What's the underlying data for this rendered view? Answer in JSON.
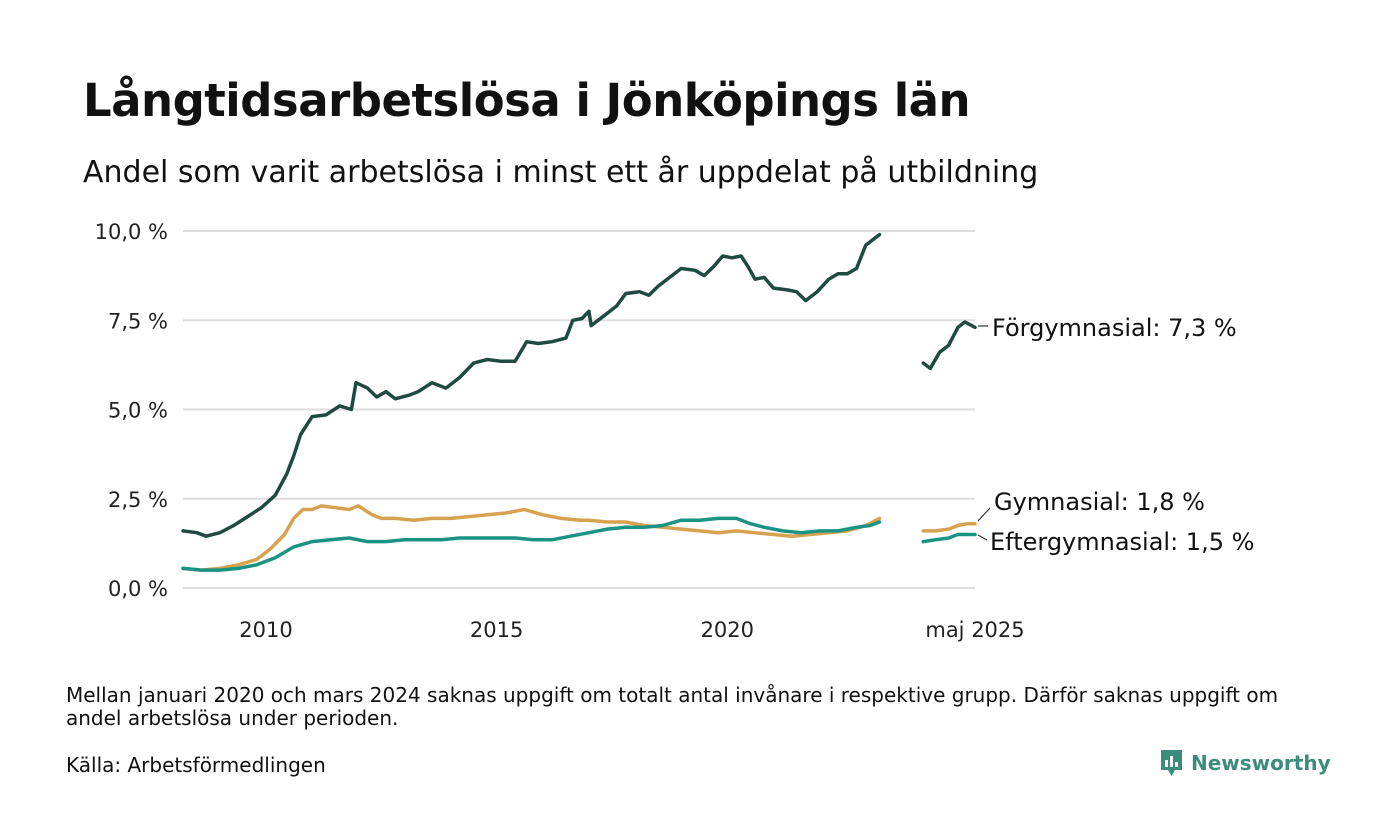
{
  "title": "Långtidsarbetslösa i Jönköpings län",
  "subtitle": "Andel som varit arbetslösa i minst ett år uppdelat på utbildning",
  "note": "Mellan januari 2020 och mars 2024 saknas uppgift om totalt antal invånare i respektive grupp. Därför saknas uppgift om andel arbetslösa under perioden.",
  "source": "Källa: Arbetsförmedlingen",
  "brand": "Newsworthy",
  "colors": {
    "forgymnasial": "#1f4a42",
    "gymnasial": "#d6a24f",
    "eftergymnasial": "#1a9383",
    "grid": "#dddddd"
  },
  "chart_data": {
    "type": "line",
    "y_tick_labels": [
      "0,0 %",
      "2,5 %",
      "5,0 %",
      "7,5 %",
      "10,0 %"
    ],
    "y_ticks": [
      0,
      2.5,
      5,
      7.5,
      10
    ],
    "x_tick_labels": [
      "2010",
      "2015",
      "2020",
      "maj 2025"
    ],
    "x_ticks": [
      2010,
      2015,
      2020,
      2025.37
    ],
    "xlim": [
      2008.2,
      2025.37
    ],
    "ylim": [
      0,
      10
    ],
    "grid": true,
    "series": [
      {
        "name": "Förgymnasial",
        "end_label": "Förgymnasial: 7,3 %",
        "color_key": "forgymnasial",
        "segments": [
          [
            [
              2008.2,
              1.6
            ],
            [
              2008.5,
              1.55
            ],
            [
              2008.7,
              1.45
            ],
            [
              2009.0,
              1.55
            ],
            [
              2009.3,
              1.75
            ],
            [
              2009.6,
              2.0
            ],
            [
              2009.9,
              2.25
            ],
            [
              2010.2,
              2.6
            ],
            [
              2010.45,
              3.2
            ],
            [
              2010.6,
              3.7
            ],
            [
              2010.75,
              4.3
            ],
            [
              2011.0,
              4.8
            ],
            [
              2011.3,
              4.85
            ],
            [
              2011.6,
              5.1
            ],
            [
              2011.85,
              5.0
            ],
            [
              2011.95,
              5.75
            ],
            [
              2012.2,
              5.6
            ],
            [
              2012.4,
              5.35
            ],
            [
              2012.6,
              5.5
            ],
            [
              2012.8,
              5.3
            ],
            [
              2013.1,
              5.4
            ],
            [
              2013.3,
              5.5
            ],
            [
              2013.6,
              5.75
            ],
            [
              2013.9,
              5.6
            ],
            [
              2014.2,
              5.9
            ],
            [
              2014.5,
              6.3
            ],
            [
              2014.8,
              6.4
            ],
            [
              2015.1,
              6.35
            ],
            [
              2015.4,
              6.35
            ],
            [
              2015.65,
              6.9
            ],
            [
              2015.9,
              6.85
            ],
            [
              2016.2,
              6.9
            ],
            [
              2016.5,
              7.0
            ],
            [
              2016.65,
              7.5
            ],
            [
              2016.85,
              7.55
            ],
            [
              2017.0,
              7.75
            ],
            [
              2017.05,
              7.35
            ],
            [
              2017.3,
              7.6
            ],
            [
              2017.6,
              7.9
            ],
            [
              2017.8,
              8.25
            ],
            [
              2018.1,
              8.3
            ],
            [
              2018.3,
              8.2
            ],
            [
              2018.5,
              8.45
            ],
            [
              2018.8,
              8.75
            ],
            [
              2019.0,
              8.95
            ],
            [
              2019.3,
              8.9
            ],
            [
              2019.5,
              8.75
            ],
            [
              2019.7,
              9.0
            ],
            [
              2019.9,
              9.3
            ],
            [
              2020.1,
              9.25
            ],
            [
              2020.3,
              9.3
            ],
            [
              2020.45,
              9.0
            ],
            [
              2020.6,
              8.65
            ],
            [
              2020.8,
              8.7
            ],
            [
              2021.0,
              8.4
            ],
            [
              2021.3,
              8.35
            ],
            [
              2021.5,
              8.3
            ],
            [
              2021.7,
              8.05
            ],
            [
              2021.95,
              8.3
            ],
            [
              2022.2,
              8.65
            ],
            [
              2022.4,
              8.8
            ],
            [
              2022.6,
              8.8
            ],
            [
              2022.8,
              8.95
            ],
            [
              2023.0,
              9.6
            ],
            [
              2023.2,
              9.8
            ],
            [
              2023.3,
              9.9
            ]
          ],
          [
            [
              2024.25,
              6.3
            ],
            [
              2024.4,
              6.15
            ],
            [
              2024.6,
              6.6
            ],
            [
              2024.8,
              6.8
            ],
            [
              2025.0,
              7.3
            ],
            [
              2025.15,
              7.45
            ],
            [
              2025.3,
              7.35
            ],
            [
              2025.37,
              7.3
            ]
          ]
        ]
      },
      {
        "name": "Gymnasial",
        "end_label": "Gymnasial: 1,8 %",
        "color_key": "gymnasial",
        "segments": [
          [
            [
              2008.2,
              0.55
            ],
            [
              2008.6,
              0.5
            ],
            [
              2009.0,
              0.55
            ],
            [
              2009.4,
              0.65
            ],
            [
              2009.8,
              0.8
            ],
            [
              2010.1,
              1.1
            ],
            [
              2010.4,
              1.5
            ],
            [
              2010.6,
              1.95
            ],
            [
              2010.8,
              2.2
            ],
            [
              2011.0,
              2.2
            ],
            [
              2011.2,
              2.3
            ],
            [
              2011.5,
              2.25
            ],
            [
              2011.8,
              2.2
            ],
            [
              2012.0,
              2.3
            ],
            [
              2012.3,
              2.05
            ],
            [
              2012.5,
              1.95
            ],
            [
              2012.8,
              1.95
            ],
            [
              2013.2,
              1.9
            ],
            [
              2013.6,
              1.95
            ],
            [
              2014.0,
              1.95
            ],
            [
              2014.4,
              2.0
            ],
            [
              2014.8,
              2.05
            ],
            [
              2015.2,
              2.1
            ],
            [
              2015.6,
              2.2
            ],
            [
              2016.0,
              2.05
            ],
            [
              2016.4,
              1.95
            ],
            [
              2016.8,
              1.9
            ],
            [
              2017.0,
              1.9
            ],
            [
              2017.4,
              1.85
            ],
            [
              2017.8,
              1.85
            ],
            [
              2018.2,
              1.75
            ],
            [
              2018.6,
              1.7
            ],
            [
              2019.0,
              1.65
            ],
            [
              2019.4,
              1.6
            ],
            [
              2019.8,
              1.55
            ],
            [
              2020.2,
              1.6
            ],
            [
              2020.6,
              1.55
            ],
            [
              2021.0,
              1.5
            ],
            [
              2021.4,
              1.45
            ],
            [
              2021.8,
              1.5
            ],
            [
              2022.2,
              1.55
            ],
            [
              2022.6,
              1.6
            ],
            [
              2023.0,
              1.75
            ],
            [
              2023.3,
              1.95
            ]
          ],
          [
            [
              2024.25,
              1.6
            ],
            [
              2024.5,
              1.6
            ],
            [
              2024.8,
              1.65
            ],
            [
              2025.0,
              1.75
            ],
            [
              2025.2,
              1.8
            ],
            [
              2025.37,
              1.8
            ]
          ]
        ]
      },
      {
        "name": "Eftergymnasial",
        "end_label": "Eftergymnasial: 1,5 %",
        "color_key": "eftergymnasial",
        "segments": [
          [
            [
              2008.2,
              0.55
            ],
            [
              2008.6,
              0.5
            ],
            [
              2009.0,
              0.5
            ],
            [
              2009.4,
              0.55
            ],
            [
              2009.8,
              0.65
            ],
            [
              2010.2,
              0.85
            ],
            [
              2010.6,
              1.15
            ],
            [
              2011.0,
              1.3
            ],
            [
              2011.4,
              1.35
            ],
            [
              2011.8,
              1.4
            ],
            [
              2012.2,
              1.3
            ],
            [
              2012.6,
              1.3
            ],
            [
              2013.0,
              1.35
            ],
            [
              2013.4,
              1.35
            ],
            [
              2013.8,
              1.35
            ],
            [
              2014.2,
              1.4
            ],
            [
              2014.6,
              1.4
            ],
            [
              2015.0,
              1.4
            ],
            [
              2015.4,
              1.4
            ],
            [
              2015.8,
              1.35
            ],
            [
              2016.2,
              1.35
            ],
            [
              2016.6,
              1.45
            ],
            [
              2017.0,
              1.55
            ],
            [
              2017.4,
              1.65
            ],
            [
              2017.8,
              1.7
            ],
            [
              2018.2,
              1.7
            ],
            [
              2018.6,
              1.75
            ],
            [
              2019.0,
              1.9
            ],
            [
              2019.4,
              1.9
            ],
            [
              2019.8,
              1.95
            ],
            [
              2020.2,
              1.95
            ],
            [
              2020.5,
              1.8
            ],
            [
              2020.8,
              1.7
            ],
            [
              2021.2,
              1.6
            ],
            [
              2021.6,
              1.55
            ],
            [
              2022.0,
              1.6
            ],
            [
              2022.4,
              1.6
            ],
            [
              2022.8,
              1.7
            ],
            [
              2023.1,
              1.75
            ],
            [
              2023.3,
              1.85
            ]
          ],
          [
            [
              2024.25,
              1.3
            ],
            [
              2024.5,
              1.35
            ],
            [
              2024.8,
              1.4
            ],
            [
              2025.0,
              1.5
            ],
            [
              2025.2,
              1.5
            ],
            [
              2025.37,
              1.5
            ]
          ]
        ]
      }
    ]
  }
}
